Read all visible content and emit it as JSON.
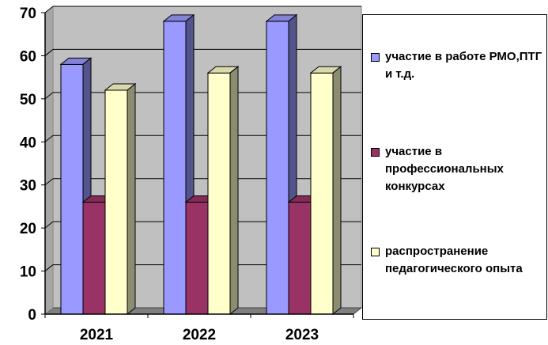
{
  "chart_data": {
    "type": "bar",
    "style": "3d-clustered-column",
    "categories": [
      "2021",
      "2022",
      "2023"
    ],
    "series": [
      {
        "name": "участие в работе РМО,ПТГ и т.д.",
        "values": [
          58,
          68,
          68
        ],
        "color": "#9999ff"
      },
      {
        "name": "участие в профессиональных конкурсах",
        "values": [
          26,
          26,
          26
        ],
        "color": "#993366"
      },
      {
        "name": "распространение педагогического опыта",
        "values": [
          52,
          56,
          56
        ],
        "color": "#ffffcc"
      }
    ],
    "ylim": [
      0,
      70
    ],
    "yticks": [
      "0",
      "10",
      "20",
      "30",
      "40",
      "50",
      "60",
      "70"
    ],
    "grid": true,
    "legend_position": "right",
    "plot_background": "#c0c0c0"
  }
}
